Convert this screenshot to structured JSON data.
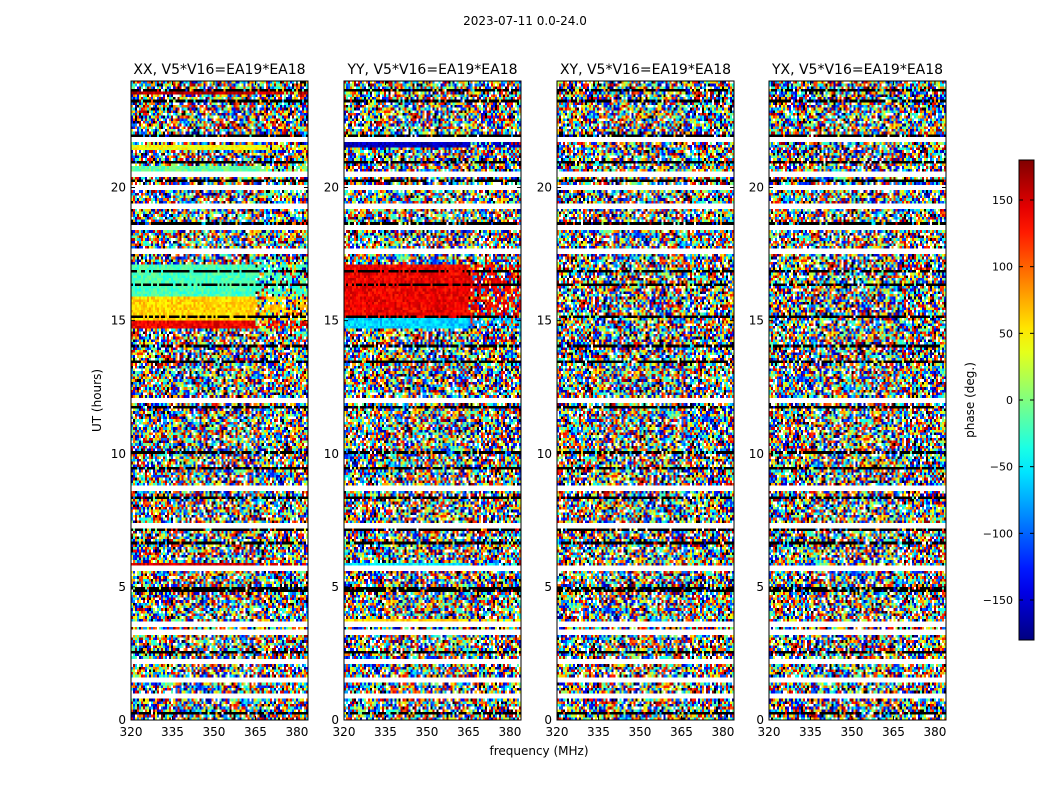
{
  "suptitle": "2023-07-11 0.0-24.0",
  "chart_data": {
    "type": "heatmap",
    "panels": [
      {
        "title": "XX, V5*V16=EA19*EA18"
      },
      {
        "title": "YY, V5*V16=EA19*EA18"
      },
      {
        "title": "XY, V5*V16=EA19*EA18"
      },
      {
        "title": "YX, V5*V16=EA19*EA18"
      }
    ],
    "xlabel": "frequency (MHz)",
    "ylabel": "UT (hours)",
    "xlim": [
      320,
      384
    ],
    "ylim": [
      0,
      24
    ],
    "xticks": [
      "320",
      "335",
      "350",
      "365",
      "380"
    ],
    "yticks": [
      "0",
      "5",
      "10",
      "15",
      "20"
    ],
    "colorbar": {
      "label": "phase (deg.)",
      "range": [
        -180,
        180
      ],
      "ticks": [
        "−150",
        "−100",
        "−50",
        "0",
        "50",
        "100",
        "150"
      ],
      "colormap": "jet"
    },
    "flagged_rows_ut": [
      0.9,
      1.5,
      2.2,
      3.3,
      3.6,
      5.7,
      7.3,
      8.7,
      12.0,
      17.6,
      18.5,
      19.3,
      20.0,
      20.5,
      21.8
    ],
    "coherent_features": [
      {
        "panel": "XX",
        "ut_range": [
          14.7,
          15.0
        ],
        "phase_deg": 140
      },
      {
        "panel": "XX",
        "ut_range": [
          15.0,
          15.9
        ],
        "phase_deg": 60
      },
      {
        "panel": "XX",
        "ut_range": [
          15.9,
          17.1
        ],
        "phase_deg": -20
      },
      {
        "panel": "XX",
        "ut_range": [
          5.7,
          5.9
        ],
        "phase_deg": 150
      },
      {
        "panel": "XX",
        "ut_range": [
          20.5,
          20.8
        ],
        "phase_deg": -10
      },
      {
        "panel": "XX",
        "ut_range": [
          21.4,
          21.6
        ],
        "phase_deg": 40
      },
      {
        "panel": "XX",
        "ut_range": [
          23.5,
          23.6
        ],
        "phase_deg": 160
      },
      {
        "panel": "YY",
        "ut_range": [
          14.7,
          15.1
        ],
        "phase_deg": -60
      },
      {
        "panel": "YY",
        "ut_range": [
          15.1,
          17.1
        ],
        "phase_deg": 140
      },
      {
        "panel": "YY",
        "ut_range": [
          5.7,
          5.9
        ],
        "phase_deg": -50
      },
      {
        "panel": "YY",
        "ut_range": [
          20.4,
          20.6
        ],
        "phase_deg": 170
      },
      {
        "panel": "YY",
        "ut_range": [
          21.5,
          21.7
        ],
        "phase_deg": -160
      },
      {
        "panel": "YY",
        "ut_range": [
          8.6,
          8.8
        ],
        "phase_deg": -150
      },
      {
        "panel": "YY",
        "ut_range": [
          3.6,
          3.8
        ],
        "phase_deg": 60
      }
    ]
  }
}
